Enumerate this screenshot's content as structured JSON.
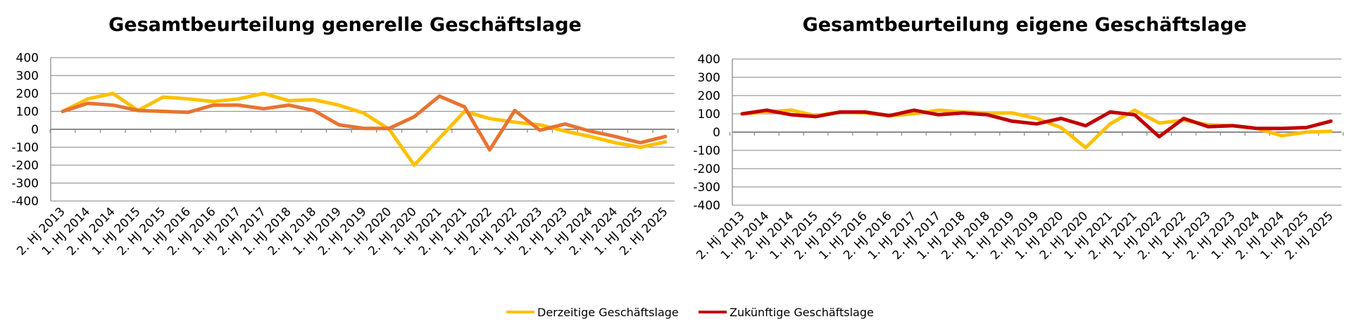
{
  "legend": [
    {
      "name": "Derzeitige Geschäftslage",
      "color": "#FFC000"
    },
    {
      "name": "Zukünftige Geschäftslage",
      "color": "#C00000"
    }
  ],
  "chart_data": [
    {
      "type": "line",
      "title": "Gesamtbeurteilung generelle Geschäftslage",
      "ylim": [
        -400,
        400
      ],
      "yticks": [
        400,
        300,
        200,
        100,
        0,
        -100,
        -200,
        -300,
        -400
      ],
      "grid": "horizontal",
      "categories": [
        "2. Hj 2013",
        "1. HJ 2014",
        "2. HJ 2014",
        "1. HJ 2015",
        "2. HJ 2015",
        "1. HJ 2016",
        "2. HJ 2016",
        "1. HJ 2017",
        "2. HJ 2017",
        "1. HJ 2018",
        "2. HJ 2018",
        "1. HJ 2019",
        "2. HJ 2019",
        "1. HJ 2020",
        "2. HJ 2020",
        "1. HJ 2021",
        "2. HJ 2021",
        "1. HJ 2022",
        "2. HJ 2022",
        "1. HJ 2023",
        "2. HJ 2023",
        "1. HJ 2024",
        "2. HJ 2024",
        "1. HJ 2025",
        "2. HJ 2025"
      ],
      "series": [
        {
          "name": "Derzeitige Geschäftslage",
          "color": "#FFC000",
          "values": [
            100,
            170,
            200,
            105,
            180,
            170,
            155,
            170,
            200,
            160,
            165,
            135,
            90,
            0,
            -200,
            -50,
            100,
            60,
            40,
            25,
            -10,
            -40,
            -75,
            -100,
            -70
          ]
        },
        {
          "name": "Zukünftige Geschäftslage",
          "color": "#E87332",
          "values": [
            100,
            145,
            135,
            105,
            100,
            95,
            135,
            135,
            115,
            135,
            105,
            25,
            5,
            5,
            70,
            185,
            125,
            -115,
            105,
            -5,
            30,
            -10,
            -40,
            -75,
            -40
          ]
        }
      ]
    },
    {
      "type": "line",
      "title": "Gesamtbeurteilung eigene Geschäftslage",
      "ylim": [
        -400,
        400
      ],
      "yticks": [
        400,
        300,
        200,
        100,
        0,
        -100,
        -200,
        -300,
        -400
      ],
      "grid": "horizontal",
      "categories": [
        "2. Hj 2013",
        "1. HJ 2014",
        "2. HJ 2014",
        "1. HJ 2015",
        "2. HJ 2015",
        "1. HJ 2016",
        "2. HJ 2016",
        "1. HJ 2017",
        "2. HJ 2017",
        "1. HJ 2018",
        "2. HJ 2018",
        "1. HJ 2019",
        "2. HJ 2019",
        "1. HJ 2020",
        "2. HJ 2020",
        "1. HJ 2021",
        "2. HJ 2021",
        "1. HJ 2022",
        "2. HJ 2022",
        "1. HJ 2023",
        "2. HJ 2023",
        "1. HJ 2024",
        "2. HJ 2024",
        "1. HJ 2025",
        "2. HJ 2025"
      ],
      "series": [
        {
          "name": "Derzeitige Geschäftslage",
          "color": "#FFC000",
          "values": [
            100,
            110,
            120,
            90,
            110,
            105,
            90,
            100,
            120,
            110,
            105,
            105,
            75,
            25,
            -85,
            45,
            120,
            50,
            65,
            40,
            35,
            20,
            -20,
            0,
            5
          ]
        },
        {
          "name": "Zukünftige Geschäftslage",
          "color": "#C00000",
          "values": [
            100,
            120,
            95,
            85,
            110,
            110,
            90,
            120,
            95,
            105,
            95,
            60,
            45,
            75,
            35,
            110,
            95,
            -25,
            75,
            30,
            35,
            20,
            20,
            25,
            60
          ]
        }
      ]
    }
  ]
}
